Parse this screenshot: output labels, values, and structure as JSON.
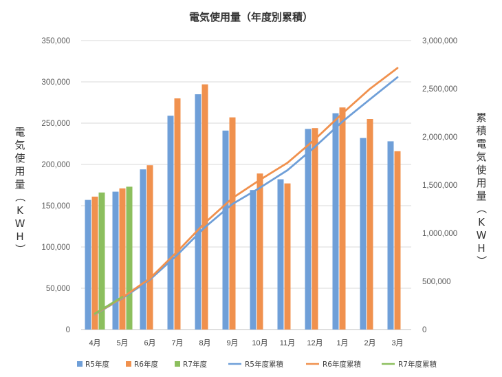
{
  "chart_data": {
    "type": "bar",
    "title": "電気使用量（年度別累積）",
    "ylabel": "電気使用量（KWH）",
    "y2label": "累積電気使用量（KWH）",
    "categories": [
      "4月",
      "5月",
      "6月",
      "7月",
      "8月",
      "9月",
      "10月",
      "11月",
      "12月",
      "1月",
      "2月",
      "3月"
    ],
    "ylim": [
      0,
      350000
    ],
    "y_ticks": [
      "0",
      "50,000",
      "100,000",
      "150,000",
      "200,000",
      "250,000",
      "300,000",
      "350,000"
    ],
    "y2lim": [
      0,
      3000000
    ],
    "y2_ticks": [
      "0",
      "500,000",
      "1,000,000",
      "1,500,000",
      "2,000,000",
      "2,500,000",
      "3,000,000"
    ],
    "grid": true,
    "legend_position": "bottom",
    "series": [
      {
        "name": "R5年度",
        "type": "bar",
        "axis": "left",
        "color": "#6f9fd8",
        "values": [
          157000,
          167000,
          194000,
          259000,
          285000,
          241000,
          169000,
          182000,
          243000,
          262000,
          232000,
          228000
        ]
      },
      {
        "name": "R6年度",
        "type": "bar",
        "axis": "left",
        "color": "#f0914e",
        "values": [
          161000,
          171000,
          199000,
          280000,
          297000,
          257000,
          189000,
          177000,
          244000,
          269000,
          255000,
          216000
        ]
      },
      {
        "name": "R7年度",
        "type": "bar",
        "axis": "left",
        "color": "#8cbf5e",
        "values": [
          166000,
          173000,
          null,
          null,
          null,
          null,
          null,
          null,
          null,
          null,
          null,
          null
        ]
      },
      {
        "name": "R5年度累積",
        "type": "line",
        "axis": "right",
        "color": "#6f9fd8",
        "values": [
          157000,
          324000,
          518000,
          777000,
          1062000,
          1303000,
          1472000,
          1654000,
          1897000,
          2159000,
          2391000,
          2619000
        ]
      },
      {
        "name": "R6年度累積",
        "type": "line",
        "axis": "right",
        "color": "#f0914e",
        "values": [
          161000,
          332000,
          531000,
          811000,
          1108000,
          1365000,
          1554000,
          1731000,
          1975000,
          2244000,
          2499000,
          2715000
        ]
      },
      {
        "name": "R7年度累積",
        "type": "line",
        "axis": "right",
        "color": "#8cbf5e",
        "values": [
          166000,
          339000,
          null,
          null,
          null,
          null,
          null,
          null,
          null,
          null,
          null,
          null
        ]
      }
    ]
  }
}
